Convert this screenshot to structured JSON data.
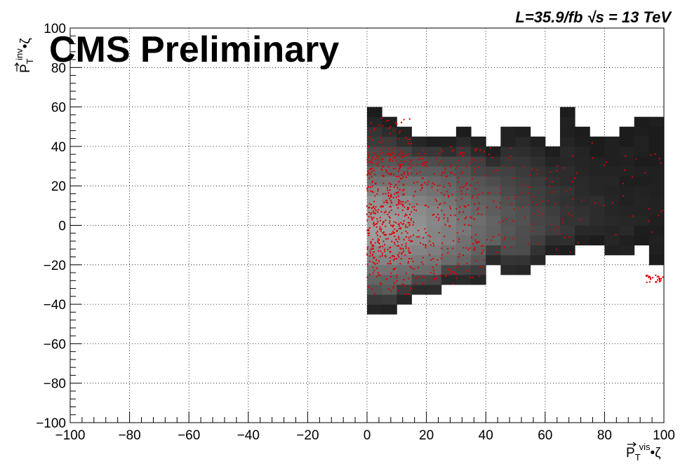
{
  "header": {
    "experiment": "CMS Preliminary",
    "luminosity": "L=35.9/fb  √s = 13 TeV"
  },
  "chart_data": {
    "type": "heatmap",
    "title": "",
    "xlabel": "P_T^vis •ζ",
    "ylabel": "P_T^inv •ζ",
    "xlabel_parts": {
      "main": "P",
      "sub": "T",
      "sup": "vis",
      "tail": "•ζ"
    },
    "ylabel_parts": {
      "main": "P",
      "sub": "T",
      "sup": "inv",
      "tail": "•ζ"
    },
    "xlim": [
      -100,
      100
    ],
    "ylim": [
      -100,
      100
    ],
    "xticks": [
      -100,
      -80,
      -60,
      -40,
      -20,
      0,
      20,
      40,
      60,
      80,
      100
    ],
    "yticks": [
      -100,
      -80,
      -60,
      -40,
      -20,
      0,
      20,
      40,
      60,
      80,
      100
    ],
    "grid": true,
    "bin_width": 5,
    "colors": {
      "background_hist": "grayscale",
      "overlay_points": "#dd0000"
    },
    "histogram_columns": [
      {
        "x_low": 0,
        "y_low": -45,
        "y_high": 60
      },
      {
        "x_low": 5,
        "y_low": -45,
        "y_high": 55
      },
      {
        "x_low": 10,
        "y_low": -40,
        "y_high": 50
      },
      {
        "x_low": 15,
        "y_low": -35,
        "y_high": 45
      },
      {
        "x_low": 20,
        "y_low": -35,
        "y_high": 45
      },
      {
        "x_low": 25,
        "y_low": -30,
        "y_high": 45
      },
      {
        "x_low": 30,
        "y_low": -30,
        "y_high": 50
      },
      {
        "x_low": 35,
        "y_low": -30,
        "y_high": 45
      },
      {
        "x_low": 40,
        "y_low": -20,
        "y_high": 40
      },
      {
        "x_low": 45,
        "y_low": -25,
        "y_high": 50
      },
      {
        "x_low": 50,
        "y_low": -25,
        "y_high": 50
      },
      {
        "x_low": 55,
        "y_low": -20,
        "y_high": 45
      },
      {
        "x_low": 60,
        "y_low": -15,
        "y_high": 40
      },
      {
        "x_low": 65,
        "y_low": -15,
        "y_high": 60
      },
      {
        "x_low": 70,
        "y_low": -10,
        "y_high": 50
      },
      {
        "x_low": 75,
        "y_low": -10,
        "y_high": 45
      },
      {
        "x_low": 80,
        "y_low": -15,
        "y_high": 45
      },
      {
        "x_low": 85,
        "y_low": -15,
        "y_high": 50
      },
      {
        "x_low": 90,
        "y_low": -10,
        "y_high": 55
      },
      {
        "x_low": 95,
        "y_low": -20,
        "y_high": 55
      }
    ],
    "scatter_overlay": {
      "description_points": "dense red point cloud",
      "regions": [
        {
          "x": [
            0,
            15
          ],
          "y": [
            -35,
            55
          ],
          "density": "high"
        },
        {
          "x": [
            15,
            40
          ],
          "y": [
            -30,
            40
          ],
          "density": "medium"
        },
        {
          "x": [
            40,
            70
          ],
          "y": [
            -15,
            40
          ],
          "density": "low"
        },
        {
          "x": [
            70,
            100
          ],
          "y": [
            -10,
            45
          ],
          "density": "sparse"
        },
        {
          "x": [
            94,
            100
          ],
          "y": [
            -29,
            -25
          ],
          "density": "sparse"
        }
      ]
    }
  }
}
